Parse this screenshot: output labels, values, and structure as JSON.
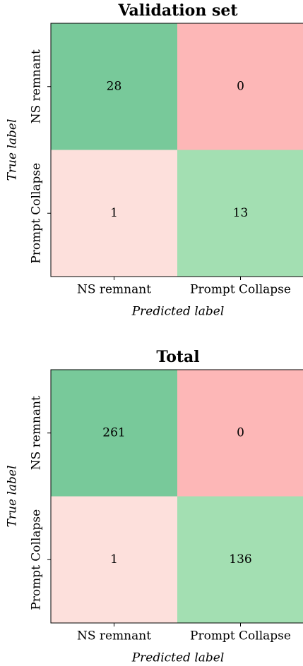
{
  "chart_data": [
    {
      "type": "heatmap",
      "title": "Validation set",
      "x_label": "Predicted label",
      "y_label": "True label",
      "x_categories": [
        "NS remnant",
        "Prompt Collapse"
      ],
      "y_categories": [
        "NS remnant",
        "Prompt Collapse"
      ],
      "values": [
        [
          28,
          0
        ],
        [
          1,
          13
        ]
      ],
      "colors": [
        [
          "#78c99a",
          "#fdb7b7"
        ],
        [
          "#fde0dc",
          "#a3dfb2"
        ]
      ]
    },
    {
      "type": "heatmap",
      "title": "Total",
      "x_label": "Predicted label",
      "y_label": "True label",
      "x_categories": [
        "NS remnant",
        "Prompt Collapse"
      ],
      "y_categories": [
        "NS remnant",
        "Prompt Collapse"
      ],
      "values": [
        [
          261,
          0
        ],
        [
          1,
          136
        ]
      ],
      "colors": [
        [
          "#78c99a",
          "#fdb7b7"
        ],
        [
          "#fde0dc",
          "#a3dfb2"
        ]
      ]
    }
  ]
}
